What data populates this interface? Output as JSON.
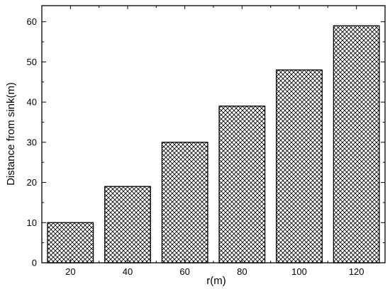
{
  "chart_data": {
    "type": "bar",
    "title": "",
    "xlabel": "r(m)",
    "ylabel": "Distance from sink(m)",
    "categories": [
      "20",
      "40",
      "60",
      "80",
      "100",
      "120"
    ],
    "values": [
      10,
      19,
      30,
      39,
      48,
      59
    ],
    "ylim": [
      0,
      64
    ],
    "yticks": [
      0,
      10,
      20,
      30,
      40,
      50,
      60
    ],
    "y_minor_step": 5,
    "grid": false,
    "legend": "none",
    "bar_fill": "crosshatch",
    "colors": {
      "bar_stroke": "#000000",
      "hatch": "#000000",
      "background": "#ffffff"
    }
  }
}
